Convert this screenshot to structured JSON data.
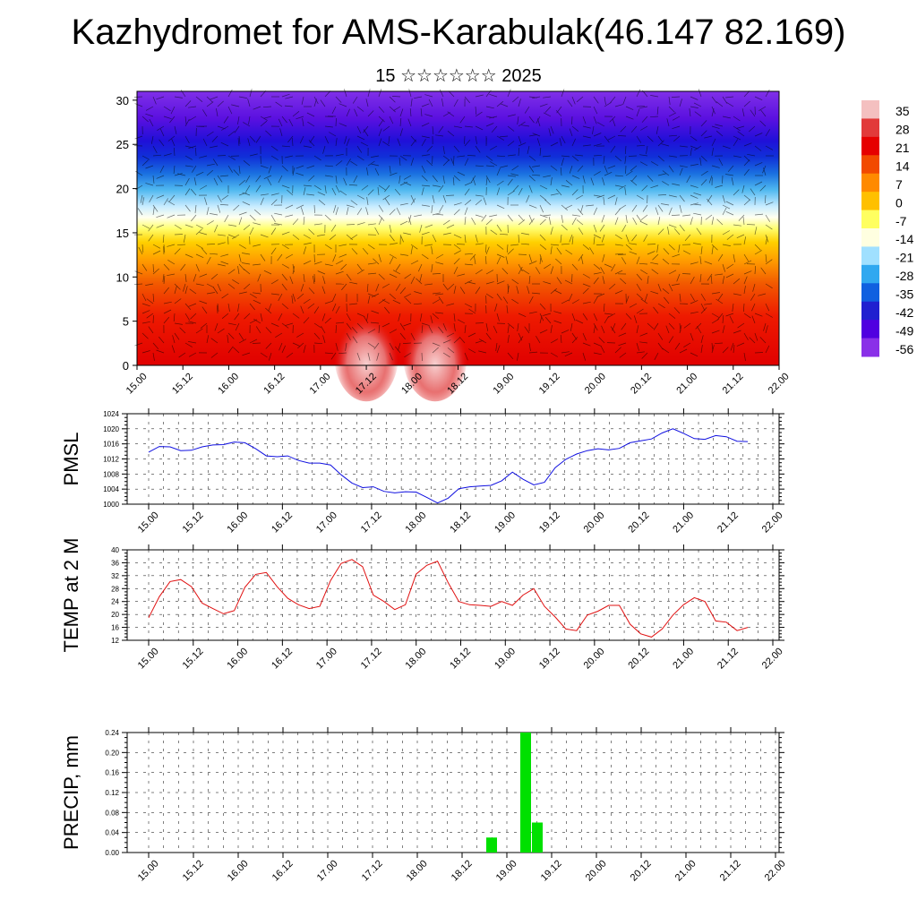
{
  "page": {
    "title": "Kazhydromet for AMS-Karabulak(46.147 82.169)",
    "subtitle": "15 ☆☆☆☆☆☆ 2025"
  },
  "colorbar": {
    "labels": [
      "35",
      "28",
      "21",
      "14",
      "7",
      "0",
      "-7",
      "-14",
      "-21",
      "-28",
      "-35",
      "-42",
      "-49",
      "-56"
    ],
    "colors": [
      "#f4c0c0",
      "#e23a3a",
      "#e60000",
      "#f24a00",
      "#ff8a00",
      "#ffc000",
      "#ffff60",
      "#ffffe0",
      "#a0e0ff",
      "#30a8f0",
      "#1060e0",
      "#2020d0",
      "#5000e0",
      "#8a30e8"
    ]
  },
  "chart_data": [
    {
      "type": "heatmap",
      "title": "",
      "x_tick_labels": [
        "15.00",
        "15.12",
        "16.00",
        "16.12",
        "17.00",
        "17.12",
        "18.00",
        "18.12",
        "19.00",
        "19.12",
        "20.00",
        "20.12",
        "21.00",
        "21.12",
        "22.00"
      ],
      "y_tick_labels": [
        "0",
        "5",
        "10",
        "15",
        "20",
        "25",
        "30"
      ],
      "ylim": [
        0,
        31
      ],
      "value_range": [
        -56,
        35
      ],
      "description_of_field": "temperature by height with wind barbs",
      "hotspots": [
        {
          "x": "17.12",
          "y": 2,
          "value": 35
        },
        {
          "x": "18.06",
          "y": 2,
          "value": 35
        }
      ]
    },
    {
      "type": "line",
      "ylabel": "PMSL",
      "ylim": [
        1000,
        1024
      ],
      "y_ticks": [
        1000,
        1004,
        1008,
        1012,
        1016,
        1020,
        1024
      ],
      "x_tick_labels": [
        "15.00",
        "15.12",
        "16.00",
        "16.12",
        "17.00",
        "17.12",
        "18.00",
        "18.12",
        "19.00",
        "19.12",
        "20.00",
        "20.12",
        "21.00",
        "21.12",
        "22.00"
      ],
      "series": [
        {
          "color": "#1010e0",
          "values": [
            1013.8,
            1015.3,
            1015.2,
            1014.2,
            1014.3,
            1015.2,
            1015.7,
            1015.8,
            1016.5,
            1016.3,
            1014.7,
            1012.8,
            1012.6,
            1012.8,
            1011.6,
            1010.9,
            1010.9,
            1010.4,
            1007.8,
            1005.6,
            1004.4,
            1004.6,
            1003.4,
            1003.0,
            1003.3,
            1003.2,
            1001.8,
            1000.3,
            1001.6,
            1004.1,
            1004.6,
            1004.8,
            1005.0,
            1006.2,
            1008.5,
            1006.6,
            1005.1,
            1005.8,
            1009.7,
            1011.9,
            1013.3,
            1014.2,
            1014.7,
            1014.4,
            1014.8,
            1016.3,
            1016.8,
            1017.3,
            1018.9,
            1020.0,
            1018.8,
            1017.4,
            1017.2,
            1018.2,
            1017.9,
            1016.7,
            1016.6
          ]
        }
      ]
    },
    {
      "type": "line",
      "ylabel": "TEMP at 2 M",
      "ylim": [
        12,
        40
      ],
      "y_ticks": [
        12,
        16,
        20,
        24,
        28,
        32,
        36,
        40
      ],
      "x_tick_labels": [
        "15.00",
        "15.12",
        "16.00",
        "16.12",
        "17.00",
        "17.12",
        "18.00",
        "18.12",
        "19.00",
        "19.12",
        "20.00",
        "20.12",
        "21.00",
        "21.12",
        "22.00"
      ],
      "series": [
        {
          "color": "#e01010",
          "values": [
            19.0,
            25.5,
            30.2,
            30.8,
            28.6,
            23.5,
            21.8,
            20.2,
            21.2,
            28.4,
            32.4,
            33.0,
            28.6,
            25.0,
            23.0,
            21.8,
            22.5,
            30.5,
            35.8,
            37.0,
            34.8,
            26.0,
            24.0,
            21.5,
            23.0,
            32.5,
            35.2,
            36.5,
            29.8,
            24.0,
            23.0,
            22.8,
            22.5,
            24.0,
            22.8,
            26.0,
            28.0,
            22.5,
            19.2,
            15.5,
            15.0,
            19.8,
            21.0,
            22.8,
            22.8,
            17.0,
            14.0,
            13.0,
            15.5,
            19.8,
            23.0,
            25.2,
            24.0,
            18.0,
            17.6,
            15.0,
            16.0
          ]
        }
      ]
    },
    {
      "type": "bar",
      "ylabel": "PRECIP, mm",
      "ylim": [
        0,
        0.24
      ],
      "y_tick_labels": [
        "0.00",
        "0.04",
        "0.08",
        "0.12",
        "0.16",
        "0.20",
        "0.24"
      ],
      "x_tick_labels": [
        "15.00",
        "15.12",
        "16.00",
        "16.12",
        "17.00",
        "17.12",
        "18.00",
        "18.12",
        "19.00",
        "19.12",
        "20.00",
        "20.12",
        "21.00",
        "21.12",
        "22.00"
      ],
      "bar_color": "#00e000",
      "bars": [
        {
          "x": "18.18",
          "value": 0.03
        },
        {
          "x": "19.03",
          "value": 0.24
        },
        {
          "x": "19.06",
          "value": 0.06
        }
      ]
    }
  ]
}
